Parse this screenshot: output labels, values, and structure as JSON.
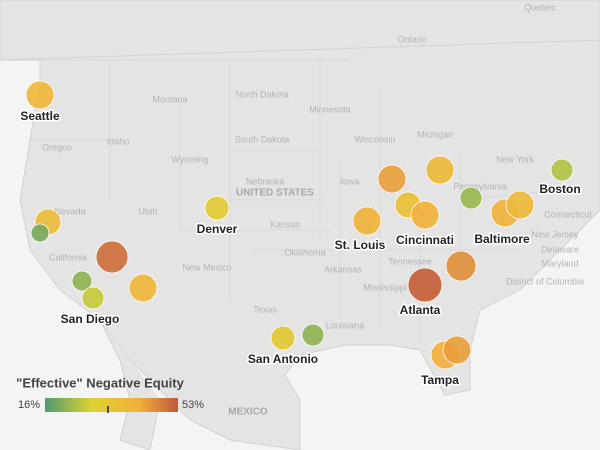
{
  "map": {
    "labels": [
      "Quebec",
      "Ontario",
      "Montana",
      "North Dakota",
      "South Dakota",
      "Minnesota",
      "Wisconsin",
      "Michigan",
      "Oregon",
      "Idaho",
      "Wyoming",
      "Nebraska",
      "UNITED STATES",
      "Iowa",
      "Nevada",
      "Utah",
      "Kansas",
      "California",
      "New Mexico",
      "Oklahoma",
      "Arkansas",
      "Mississippi",
      "Louisiana",
      "Texas",
      "Tennessee",
      "New York",
      "Pennsylvania",
      "Connecticut",
      "New Jersey",
      "Delaware",
      "Maryland",
      "District of Columbia",
      "MEXICO"
    ],
    "bubbles": [
      {
        "label": "Seattle",
        "value": 40
      },
      {
        "label": null,
        "value": 38
      },
      {
        "label": null,
        "value": 20
      },
      {
        "label": null,
        "value": 50
      },
      {
        "label": null,
        "value": 22
      },
      {
        "label": "San Diego",
        "value": 27
      },
      {
        "label": null,
        "value": 40
      },
      {
        "label": "Denver",
        "value": 32
      },
      {
        "label": "San Antonio",
        "value": 33
      },
      {
        "label": null,
        "value": 22
      },
      {
        "label": null,
        "value": 44
      },
      {
        "label": null,
        "value": 39
      },
      {
        "label": null,
        "value": 36
      },
      {
        "label": "Cincinnati",
        "value": 42
      },
      {
        "label": "St. Louis",
        "value": 41
      },
      {
        "label": null,
        "value": 23
      },
      {
        "label": "Baltimore",
        "value": 41
      },
      {
        "label": null,
        "value": 39
      },
      {
        "label": "Boston",
        "value": 25
      },
      {
        "label": null,
        "value": 46
      },
      {
        "label": "Atlanta",
        "value": 52
      },
      {
        "label": null,
        "value": 42
      },
      {
        "label": "Tampa",
        "value": 44
      }
    ],
    "legend": {
      "title": "\"Effective\" Negative Equity",
      "min": {
        "value": 16,
        "label": "16%"
      },
      "max": {
        "value": 53,
        "label": "53%"
      }
    }
  }
}
